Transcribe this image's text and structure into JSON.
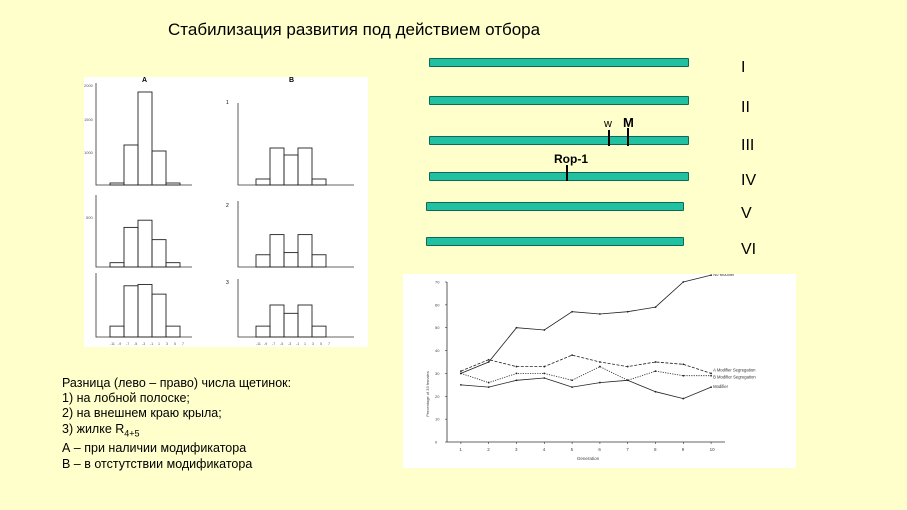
{
  "title": "Стабилизация развития под действием отбора",
  "chromosomes": [
    {
      "label": "I"
    },
    {
      "label": "II"
    },
    {
      "label": "III"
    },
    {
      "label": "IV"
    },
    {
      "label": "V"
    },
    {
      "label": "VI"
    }
  ],
  "genes": {
    "w": "w",
    "m": "M",
    "pop1": "Rop-1"
  },
  "histograms": {
    "column_labels": [
      "A",
      "B"
    ],
    "row_labels": [
      "1",
      "2",
      "3"
    ],
    "y_ticks": [
      "2000",
      "1500",
      "1000",
      "500"
    ],
    "x_ticks": [
      "-11",
      "-9",
      "-7",
      "-5",
      "-3",
      "-1",
      "1",
      "3",
      "5",
      "7"
    ],
    "bins_A": [
      [
        0.02,
        0.4,
        0.93,
        0.34,
        0.02
      ],
      [
        0.06,
        0.55,
        0.65,
        0.38,
        0.06
      ],
      [
        0.17,
        0.8,
        0.82,
        0.67,
        0.17
      ]
    ],
    "bins_B": [
      [
        0.06,
        0.37,
        0.3,
        0.37,
        0.06
      ],
      [
        0.17,
        0.45,
        0.2,
        0.45,
        0.17
      ],
      [
        0.17,
        0.5,
        0.37,
        0.5,
        0.17
      ]
    ]
  },
  "chart_data": {
    "type": "line",
    "x": [
      1,
      2,
      3,
      4,
      5,
      6,
      7,
      8,
      9,
      10
    ],
    "xlabel": "Generation",
    "ylabel": "Percentage of 33 females",
    "ylim": [
      0,
      70
    ],
    "y_ticks": [
      0,
      10,
      20,
      30,
      40,
      50,
      60,
      70
    ],
    "series": [
      {
        "name": "No Modifier",
        "values": [
          30,
          35,
          50,
          49,
          57,
          56,
          57,
          59,
          70,
          73
        ]
      },
      {
        "name": "A Modifier Segregation",
        "values": [
          31,
          36,
          33,
          33,
          38,
          35,
          33,
          35,
          34,
          30
        ]
      },
      {
        "name": "B Modifier Segregation",
        "values": [
          30,
          26,
          30,
          30,
          27,
          33,
          27,
          31,
          29,
          29
        ]
      },
      {
        "name": "Modifier",
        "values": [
          25,
          24,
          27,
          28,
          24,
          26,
          27,
          22,
          19,
          24
        ]
      }
    ]
  },
  "caption": {
    "intro": "Разница (лево – право) числа щетинок:",
    "item1": "1)   на лобной полоске;",
    "item2": "2)   на внешнем краю крыла;",
    "item3_prefix": "3)   жилке R",
    "item3_sub": "4+5",
    "lineA": "А – при наличии модификатора",
    "lineB": "В – в отстутствии модификатора"
  }
}
